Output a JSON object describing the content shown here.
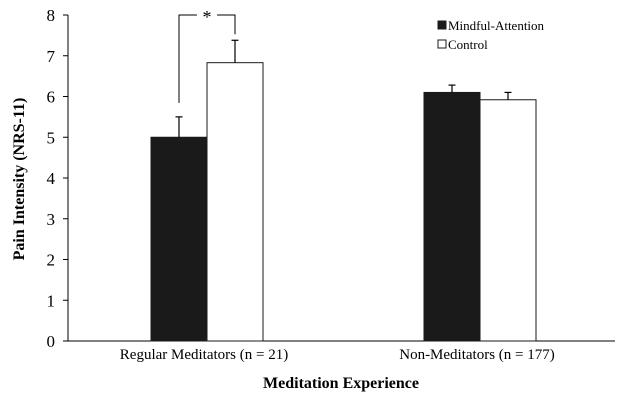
{
  "chart_data": {
    "type": "bar",
    "title": "",
    "xlabel": "Meditation Experience",
    "ylabel": "Pain Intensity (NRS-11)",
    "ylim": [
      0,
      8
    ],
    "yticks": [
      "0",
      "1",
      "2",
      "3",
      "4",
      "5",
      "6",
      "7",
      "8"
    ],
    "categories": [
      "Regular Meditators (n = 21)",
      "Non-Meditators (n = 177)"
    ],
    "series": [
      {
        "name": "Mindful-Attention",
        "values": [
          5.0,
          6.1
        ],
        "errors": [
          0.5,
          0.18
        ],
        "color": "#1a1a1a"
      },
      {
        "name": "Control",
        "values": [
          6.83,
          5.92
        ],
        "errors": [
          0.55,
          0.18
        ],
        "color": "#ffffff"
      }
    ],
    "legend_position": "top-right",
    "grid": false,
    "significance": {
      "category_index": 0,
      "label": "*"
    }
  }
}
